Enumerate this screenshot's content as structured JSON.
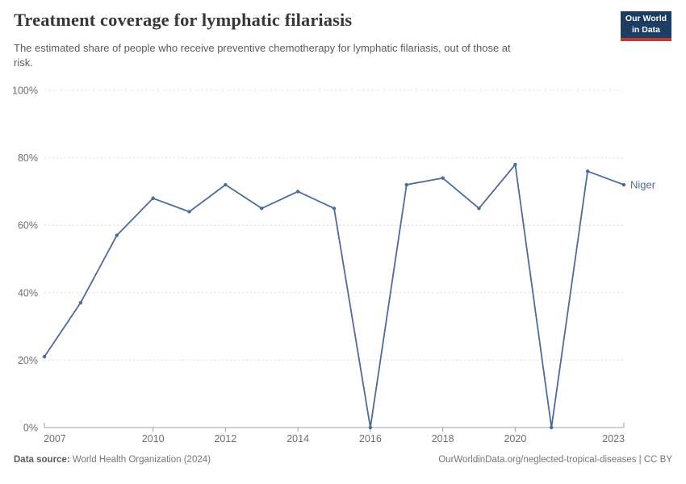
{
  "header": {
    "title": "Treatment coverage for lymphatic filariasis",
    "subtitle_line1": "The estimated share of people who receive preventive chemotherapy for lymphatic filariasis, out of those at",
    "subtitle_line2": "risk."
  },
  "logo": {
    "line1": "Our World",
    "line2": "in Data",
    "bg_color": "#1D3D63",
    "stripe_color": "#C0392B"
  },
  "footer": {
    "datasource_label": "Data source:",
    "datasource_value": " World Health Organization (2024)",
    "rights": "OurWorldinData.org/neglected-tropical-diseases | CC BY"
  },
  "chart_data": {
    "type": "line",
    "title": "Treatment coverage for lymphatic filariasis",
    "x": [
      2007,
      2008,
      2009,
      2010,
      2011,
      2012,
      2013,
      2014,
      2015,
      2016,
      2017,
      2018,
      2019,
      2020,
      2021,
      2022,
      2023
    ],
    "series": [
      {
        "name": "Niger",
        "color": "#4C6A9C",
        "values": [
          21,
          37,
          57,
          68,
          64,
          72,
          65,
          70,
          65,
          0,
          72,
          74,
          65,
          78,
          0,
          76,
          72
        ]
      }
    ],
    "end_label": "Niger",
    "xlim": [
      2007,
      2023
    ],
    "ylim": [
      0,
      100
    ],
    "x_ticks": [
      2007,
      2010,
      2012,
      2014,
      2016,
      2018,
      2020,
      2023
    ],
    "y_ticks": [
      0,
      20,
      40,
      60,
      80,
      100
    ],
    "y_tick_suffix": "%",
    "grid": "horizontal-dashed",
    "grid_color": "#dcdcdc",
    "axis_color": "#a1a1a1",
    "tick_label_color": "#6e6e6e",
    "legend_position": "end-of-line"
  }
}
